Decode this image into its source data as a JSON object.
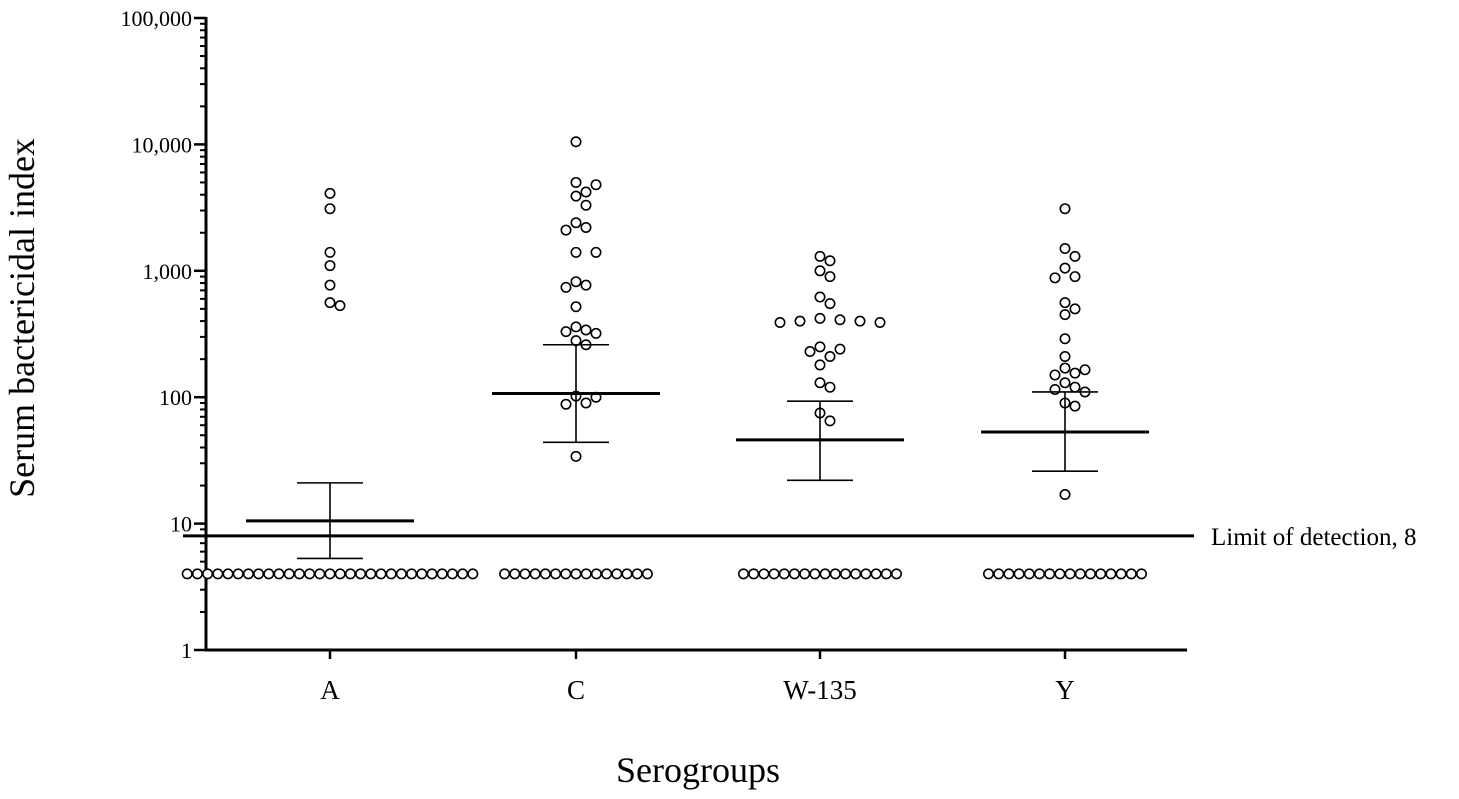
{
  "chart_data": {
    "type": "scatter",
    "xlabel": "Serogroups",
    "ylabel": "Serum bactericidal index",
    "yscale": "log10",
    "ylim": [
      1,
      100000
    ],
    "yticks": [
      {
        "value": 1,
        "label": "1"
      },
      {
        "value": 10,
        "label": "10"
      },
      {
        "value": 100,
        "label": "100"
      },
      {
        "value": 1000,
        "label": "1,000"
      },
      {
        "value": 10000,
        "label": "10,000"
      },
      {
        "value": 100000,
        "label": "100,000"
      }
    ],
    "grid": false,
    "categories": [
      "A",
      "C",
      "W-135",
      "Y"
    ],
    "reference_line": {
      "value": 8,
      "label": "Limit of detection, 8"
    },
    "groups": [
      {
        "category": "A",
        "mean": 10.5,
        "ci_low": 5.3,
        "ci_high": 21,
        "below_detection_count": 29,
        "below_detection_value": 4,
        "points": [
          4100,
          3100,
          1400,
          1100,
          770,
          560,
          530
        ]
      },
      {
        "category": "C",
        "mean": 107,
        "ci_low": 44,
        "ci_high": 260,
        "below_detection_count": 15,
        "below_detection_value": 4,
        "points": [
          10500,
          5000,
          4800,
          4200,
          3900,
          3300,
          2400,
          2200,
          2100,
          1400,
          1400,
          820,
          770,
          740,
          520,
          360,
          340,
          330,
          320,
          280,
          260,
          102,
          100,
          90,
          88,
          34
        ]
      },
      {
        "category": "W-135",
        "mean": 46,
        "ci_low": 22,
        "ci_high": 93,
        "below_detection_count": 16,
        "below_detection_value": 4,
        "points": [
          1300,
          1200,
          1000,
          900,
          620,
          550,
          420,
          410,
          400,
          400,
          390,
          390,
          250,
          240,
          230,
          210,
          180,
          130,
          120,
          75,
          65
        ]
      },
      {
        "category": "Y",
        "mean": 53,
        "ci_low": 26,
        "ci_high": 110,
        "below_detection_count": 16,
        "below_detection_value": 4,
        "points": [
          3100,
          1500,
          1300,
          1050,
          900,
          880,
          560,
          500,
          450,
          290,
          210,
          170,
          165,
          155,
          150,
          130,
          120,
          115,
          110,
          90,
          85,
          17
        ]
      }
    ]
  }
}
